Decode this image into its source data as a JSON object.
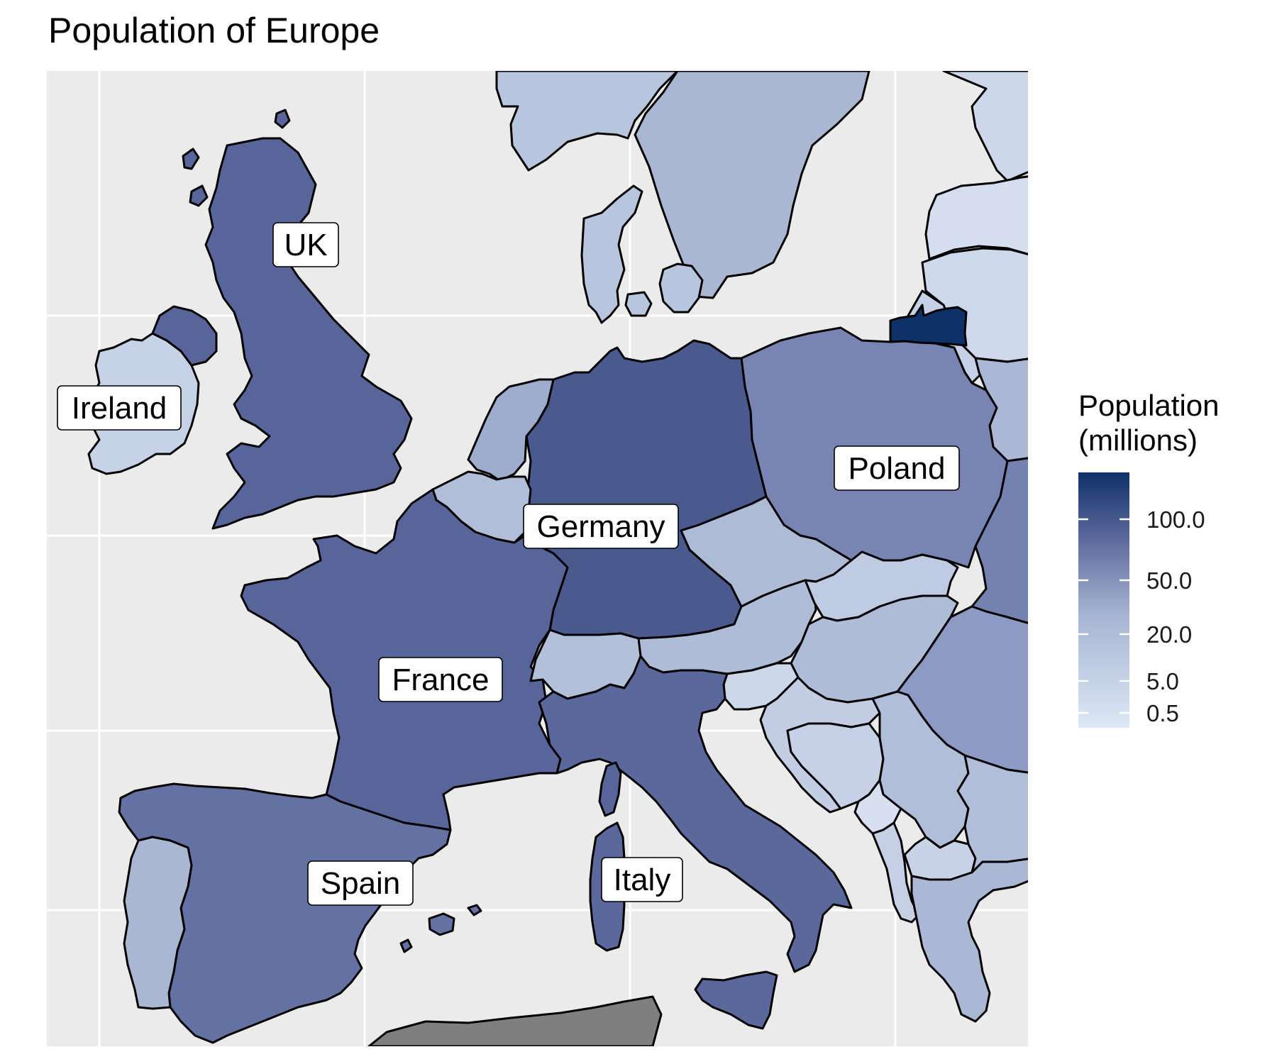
{
  "title": "Population of Europe",
  "colors": {
    "panel_background": "#ebebeb",
    "grid": "#ffffff",
    "border": "#000000",
    "no_data": "#7f7f7f",
    "scale_low": "#dce8f5",
    "scale_high": "#0e3169"
  },
  "legend": {
    "title_line1": "Population",
    "title_line2": "(millions)",
    "breaks": [
      "100.0",
      "50.0",
      "20.0",
      "5.0",
      "0.5"
    ],
    "position": "right"
  },
  "labels": [
    {
      "key": "uk",
      "text": "UK"
    },
    {
      "key": "ireland",
      "text": "Ireland"
    },
    {
      "key": "poland",
      "text": "Poland"
    },
    {
      "key": "germany",
      "text": "Germany"
    },
    {
      "key": "france",
      "text": "France"
    },
    {
      "key": "spain",
      "text": "Spain"
    },
    {
      "key": "italy",
      "text": "Italy"
    }
  ],
  "regions": [
    {
      "key": "uk",
      "fill": "#58659a"
    },
    {
      "key": "ireland",
      "fill": "#c6d2e7"
    },
    {
      "key": "france",
      "fill": "#58659a"
    },
    {
      "key": "spain",
      "fill": "#6372a3"
    },
    {
      "key": "portugal",
      "fill": "#a9b7d3"
    },
    {
      "key": "germany",
      "fill": "#4a5a8e"
    },
    {
      "key": "italy",
      "fill": "#5a689c"
    },
    {
      "key": "poland",
      "fill": "#7885b2"
    },
    {
      "key": "netherlands",
      "fill": "#9eacce"
    },
    {
      "key": "belgium",
      "fill": "#b1bed9"
    },
    {
      "key": "switzerland",
      "fill": "#b3c0da"
    },
    {
      "key": "austria",
      "fill": "#aebcd8"
    },
    {
      "key": "czechia",
      "fill": "#adbbd7"
    },
    {
      "key": "slovakia",
      "fill": "#bfcbe2"
    },
    {
      "key": "hungary",
      "fill": "#afbcd8"
    },
    {
      "key": "slovenia",
      "fill": "#ccd7ea"
    },
    {
      "key": "croatia",
      "fill": "#c3cee5"
    },
    {
      "key": "bosnia",
      "fill": "#c6d1e7"
    },
    {
      "key": "serbia",
      "fill": "#b1bed9"
    },
    {
      "key": "montenegro",
      "fill": "#d6e0f0"
    },
    {
      "key": "albania",
      "fill": "#c5d0e6"
    },
    {
      "key": "north-macedonia",
      "fill": "#c8d3e8"
    },
    {
      "key": "greece",
      "fill": "#aab8d5"
    },
    {
      "key": "romania",
      "fill": "#8d9bc4"
    },
    {
      "key": "bulgaria",
      "fill": "#b1bed9"
    },
    {
      "key": "denmark",
      "fill": "#b8c5de"
    },
    {
      "key": "sweden",
      "fill": "#a9b7d3"
    },
    {
      "key": "norway",
      "fill": "#b8c5de"
    },
    {
      "key": "finland",
      "fill": "#ccd7ea"
    },
    {
      "key": "estonia",
      "fill": "#d4deef"
    },
    {
      "key": "latvia",
      "fill": "#cdd8eb"
    },
    {
      "key": "lithuania",
      "fill": "#c6d1e7"
    },
    {
      "key": "kaliningrad-russia",
      "fill": "#0e3169"
    },
    {
      "key": "belarus",
      "fill": "#aab8d5"
    },
    {
      "key": "ukraine",
      "fill": "#7482b0"
    },
    {
      "key": "north-africa",
      "fill": "#7f7f7f"
    }
  ]
}
